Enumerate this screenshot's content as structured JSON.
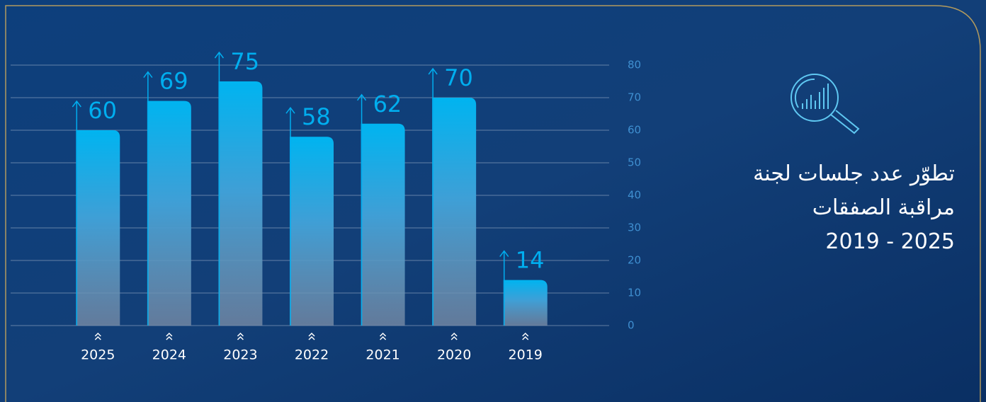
{
  "chart_data": {
    "type": "bar",
    "title_lines": [
      "تطوّر عدد جلسات لجنة",
      "مراقبة الصفقات",
      "2019 - 2025"
    ],
    "categories": [
      "2025",
      "2024",
      "2023",
      "2022",
      "2021",
      "2020",
      "2019"
    ],
    "values": [
      60,
      69,
      75,
      58,
      62,
      70,
      14
    ],
    "color": "#00aeef",
    "ylim": [
      0,
      80
    ],
    "yticks": [
      0,
      10,
      20,
      30,
      40,
      50,
      60,
      70,
      80
    ],
    "grid": true
  }
}
